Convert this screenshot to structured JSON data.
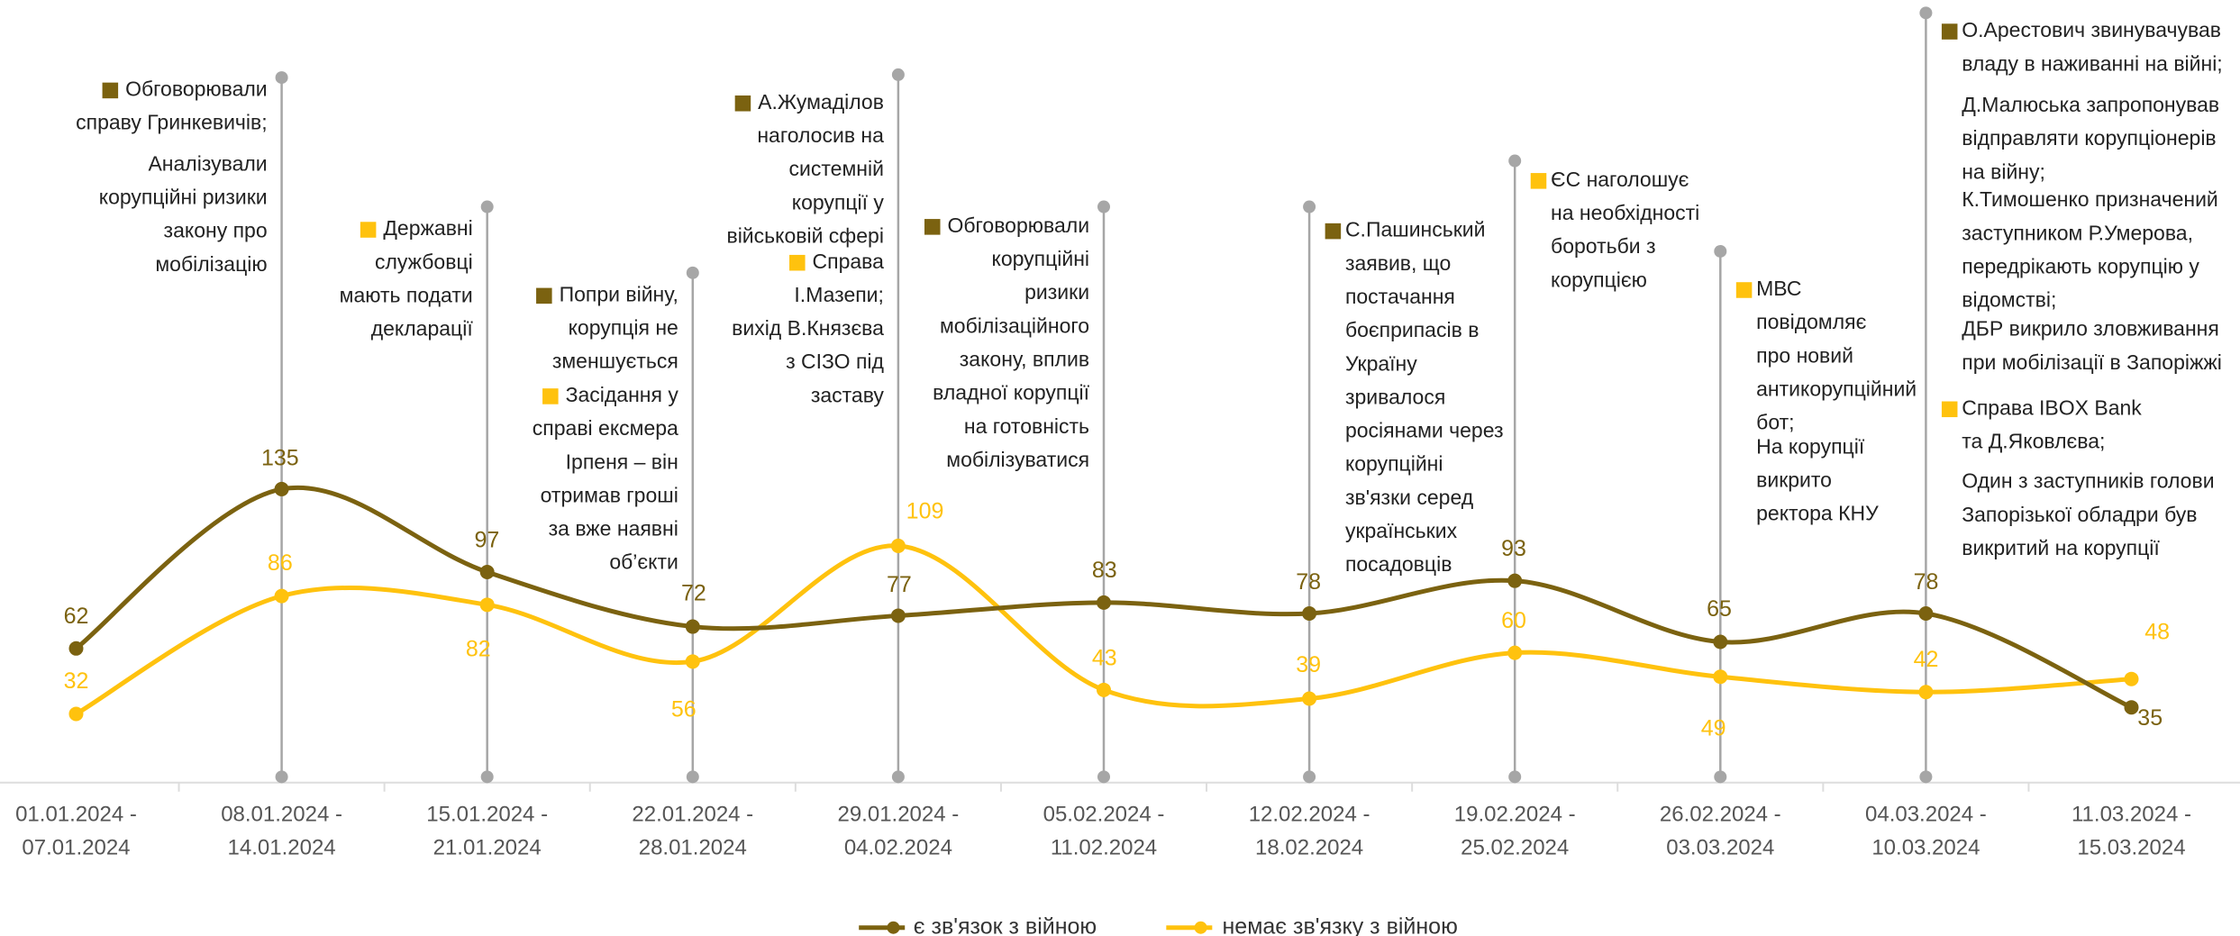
{
  "chart_data": {
    "type": "line",
    "categories": [
      [
        "01.01.2024 -",
        "07.01.2024"
      ],
      [
        "08.01.2024 -",
        "14.01.2024"
      ],
      [
        "15.01.2024 -",
        "21.01.2024"
      ],
      [
        "22.01.2024 -",
        "28.01.2024"
      ],
      [
        "29.01.2024 -",
        "04.02.2024"
      ],
      [
        "05.02.2024 -",
        "11.02.2024"
      ],
      [
        "12.02.2024 -",
        "18.02.2024"
      ],
      [
        "19.02.2024 -",
        "25.02.2024"
      ],
      [
        "26.02.2024 -",
        "03.03.2024"
      ],
      [
        "04.03.2024 -",
        "10.03.2024"
      ],
      [
        "11.03.2024 -",
        "15.03.2024"
      ]
    ],
    "series": [
      {
        "name": "є зв'язок з війною",
        "color": "#7b6210",
        "values": [
          62,
          135,
          97,
          72,
          77,
          83,
          78,
          93,
          65,
          78,
          35
        ]
      },
      {
        "name": "немає зв'язку з війною",
        "color": "#ffc20e",
        "values": [
          32,
          86,
          82,
          56,
          109,
          43,
          39,
          60,
          49,
          42,
          48
        ]
      }
    ],
    "ylim": [
      0,
      350
    ],
    "annotations": [
      {
        "items": [
          {
            "color": "#7b6210",
            "lines": [
              "Обговорювали",
              "справу Гринкевичів;"
            ]
          },
          {
            "lines": [
              "Аналізували",
              "корупційні ризики",
              "закону про",
              "мобілізацію"
            ]
          }
        ]
      },
      {
        "items": [
          {
            "color": "#ffc20e",
            "lines": [
              "Державні",
              "службовці",
              "мають подати",
              "декларації"
            ]
          }
        ]
      },
      {
        "items": [
          {
            "color": "#7b6210",
            "lines": [
              "Попри війну,",
              "корупція не",
              "зменшується"
            ]
          },
          {
            "color": "#ffc20e",
            "lines": [
              "Засідання у",
              "справі ексмера",
              "Ірпеня – він",
              "отримав гроші",
              "за вже наявні",
              "об’єкти"
            ]
          }
        ]
      },
      {
        "items": [
          {
            "color": "#7b6210",
            "lines": [
              "А.Жумаділов",
              "наголосив на",
              "системній",
              "корупції у",
              "військовій сфері"
            ]
          },
          {
            "color": "#ffc20e",
            "lines": [
              "Справа",
              "І.Мазепи;",
              "вихід В.Князєва",
              "з СІЗО під",
              "заставу"
            ]
          }
        ]
      },
      {
        "items": [
          {
            "color": "#7b6210",
            "lines": [
              "Обговорювали",
              "корупційні",
              "ризики",
              "мобілізаційного",
              "закону, вплив",
              "владної корупції",
              "на готовність",
              "мобілізуватися"
            ]
          }
        ]
      },
      {
        "items": [
          {
            "color": "#7b6210",
            "lines": [
              "С.Пашинський",
              "заявив, що",
              "постачання",
              "боєприпасів в",
              "Україну",
              "зривалося",
              "росіянами через",
              "корупційні",
              "зв'язки серед",
              "українських",
              "посадовців"
            ]
          }
        ]
      },
      {
        "items": [
          {
            "color": "#ffc20e",
            "lines": [
              "ЄС наголошує",
              "на необхідності",
              "боротьби з",
              "корупцією"
            ]
          }
        ]
      },
      {
        "items": [
          {
            "color": "#ffc20e",
            "lines": [
              "МВС",
              "повідомляє",
              "про новий",
              "антикорупційний",
              "бот;"
            ]
          },
          {
            "lines": [
              "На корупції",
              "викрито",
              "ректора КНУ"
            ]
          }
        ]
      },
      {
        "items": [
          {
            "color": "#7b6210",
            "lines": [
              "О.Арестович звинувачував",
              "владу в наживанні на війні;"
            ]
          },
          {
            "lines": [
              "Д.Малюська запропонував",
              "відправляти корупціонерів",
              "на війну;"
            ]
          },
          {
            "lines": [
              "К.Тимошенко призначений",
              "заступником Р.Умерова,",
              "передрікають корупцію у",
              "відомстві;"
            ]
          },
          {
            "lines": [
              "ДБР викрило зловживання",
              "при мобілізації в Запоріжжі"
            ]
          },
          {
            "color": "#ffc20e",
            "lines": [
              "Справа IBOX Bank",
              "та Д.Яковлєва;"
            ]
          },
          {
            "lines": [
              "Один з заступників голови",
              "Запорізької обладри був",
              "викритий на корупції"
            ]
          }
        ]
      }
    ]
  }
}
